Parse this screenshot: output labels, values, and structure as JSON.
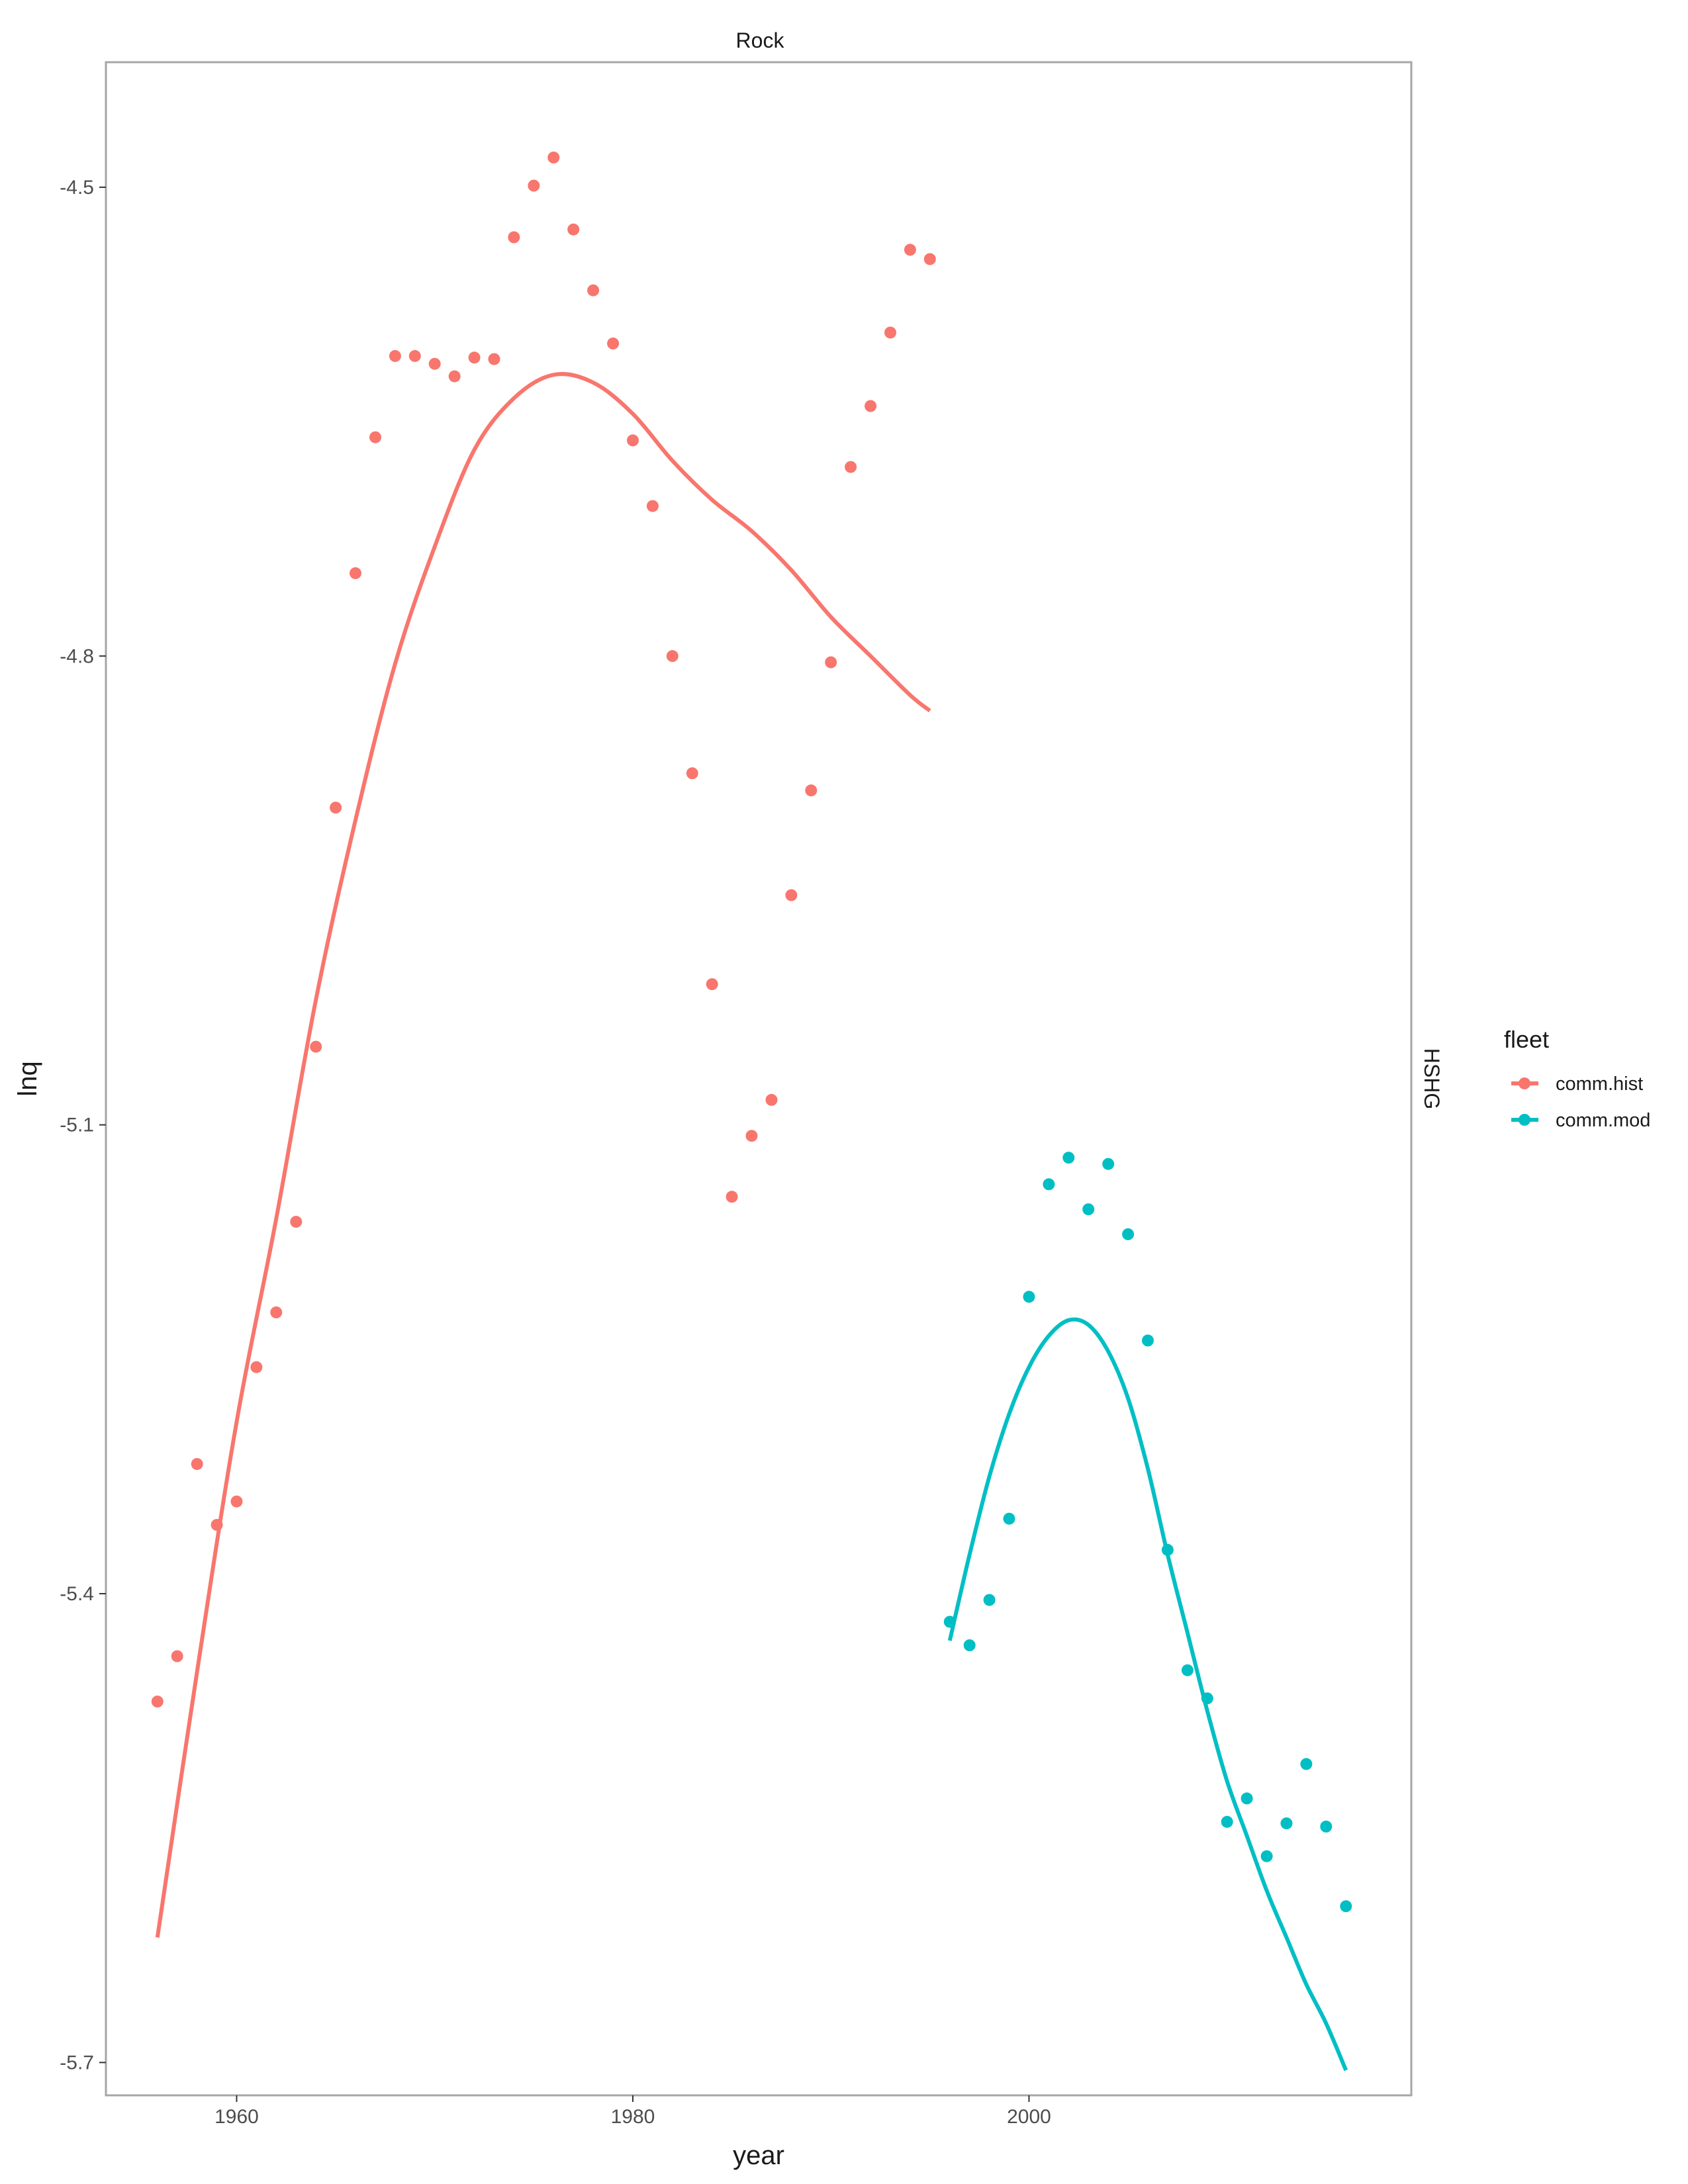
{
  "chart_data": {
    "type": "scatter",
    "facet_top": "Rock",
    "facet_right": "HSHG",
    "xlabel": "year",
    "ylabel": "lnq",
    "xlim": [
      1953.4,
      2019.3
    ],
    "ylim": [
      -5.721,
      -4.42
    ],
    "x_ticks": [
      1960,
      1980,
      2000
    ],
    "x_tick_labels": [
      "1960",
      "1980",
      "2000"
    ],
    "y_ticks": [
      -4.5,
      -4.8,
      -5.1,
      -5.4,
      -5.7
    ],
    "y_tick_labels": [
      "-4.5",
      "-4.8",
      "-5.1",
      "-5.4",
      "-5.7"
    ],
    "grid": false,
    "legend": {
      "title": "fleet",
      "position": "right"
    },
    "series": [
      {
        "name": "comm.hist",
        "color": "#F8766D",
        "points": [
          [
            1956,
            -5.469
          ],
          [
            1957,
            -5.44
          ],
          [
            1958,
            -5.317
          ],
          [
            1959,
            -5.356
          ],
          [
            1960,
            -5.341
          ],
          [
            1961,
            -5.255
          ],
          [
            1962,
            -5.22
          ],
          [
            1963,
            -5.162
          ],
          [
            1964,
            -5.05
          ],
          [
            1965,
            -4.897
          ],
          [
            1966,
            -4.747
          ],
          [
            1967,
            -4.66
          ],
          [
            1968,
            -4.608
          ],
          [
            1969,
            -4.608
          ],
          [
            1970,
            -4.613
          ],
          [
            1971,
            -4.621
          ],
          [
            1972,
            -4.609
          ],
          [
            1973,
            -4.61
          ],
          [
            1974,
            -4.532
          ],
          [
            1975,
            -4.499
          ],
          [
            1976,
            -4.481
          ],
          [
            1977,
            -4.527
          ],
          [
            1978,
            -4.566
          ],
          [
            1979,
            -4.6
          ],
          [
            1980,
            -4.662
          ],
          [
            1981,
            -4.704
          ],
          [
            1982,
            -4.8
          ],
          [
            1983,
            -4.875
          ],
          [
            1984,
            -5.01
          ],
          [
            1985,
            -5.146
          ],
          [
            1986,
            -5.107
          ],
          [
            1987,
            -5.084
          ],
          [
            1988,
            -4.953
          ],
          [
            1989,
            -4.886
          ],
          [
            1990,
            -4.804
          ],
          [
            1991,
            -4.679
          ],
          [
            1992,
            -4.64
          ],
          [
            1993,
            -4.593
          ],
          [
            1994,
            -4.54
          ],
          [
            1995,
            -4.546
          ]
        ],
        "fit": [
          [
            1956,
            -5.62
          ],
          [
            1958,
            -5.45
          ],
          [
            1960,
            -5.29
          ],
          [
            1962,
            -5.16
          ],
          [
            1964,
            -5.02
          ],
          [
            1966,
            -4.905
          ],
          [
            1968,
            -4.805
          ],
          [
            1970,
            -4.73
          ],
          [
            1972,
            -4.668
          ],
          [
            1974,
            -4.635
          ],
          [
            1976,
            -4.62
          ],
          [
            1978,
            -4.625
          ],
          [
            1980,
            -4.645
          ],
          [
            1982,
            -4.675
          ],
          [
            1984,
            -4.7
          ],
          [
            1986,
            -4.72
          ],
          [
            1988,
            -4.745
          ],
          [
            1990,
            -4.775
          ],
          [
            1992,
            -4.8
          ],
          [
            1994,
            -4.825
          ],
          [
            1995,
            -4.835
          ]
        ]
      },
      {
        "name": "comm.mod",
        "color": "#00BFC4",
        "points": [
          [
            1996,
            -5.418
          ],
          [
            1997,
            -5.433
          ],
          [
            1998,
            -5.404
          ],
          [
            1999,
            -5.352
          ],
          [
            2000,
            -5.21
          ],
          [
            2001,
            -5.138
          ],
          [
            2002,
            -5.121
          ],
          [
            2003,
            -5.154
          ],
          [
            2004,
            -5.125
          ],
          [
            2005,
            -5.17
          ],
          [
            2006,
            -5.238
          ],
          [
            2007,
            -5.372
          ],
          [
            2008,
            -5.449
          ],
          [
            2009,
            -5.467
          ],
          [
            2010,
            -5.546
          ],
          [
            2011,
            -5.531
          ],
          [
            2012,
            -5.568
          ],
          [
            2013,
            -5.547
          ],
          [
            2014,
            -5.509
          ],
          [
            2015,
            -5.549
          ],
          [
            2016,
            -5.6
          ]
        ],
        "fit": [
          [
            1996,
            -5.43
          ],
          [
            1997,
            -5.375
          ],
          [
            1998,
            -5.325
          ],
          [
            1999,
            -5.285
          ],
          [
            2000,
            -5.255
          ],
          [
            2001,
            -5.235
          ],
          [
            2002,
            -5.225
          ],
          [
            2003,
            -5.228
          ],
          [
            2004,
            -5.245
          ],
          [
            2005,
            -5.275
          ],
          [
            2006,
            -5.32
          ],
          [
            2007,
            -5.375
          ],
          [
            2008,
            -5.425
          ],
          [
            2009,
            -5.475
          ],
          [
            2010,
            -5.52
          ],
          [
            2011,
            -5.555
          ],
          [
            2012,
            -5.59
          ],
          [
            2013,
            -5.62
          ],
          [
            2014,
            -5.65
          ],
          [
            2015,
            -5.675
          ],
          [
            2016,
            -5.705
          ]
        ]
      }
    ]
  }
}
